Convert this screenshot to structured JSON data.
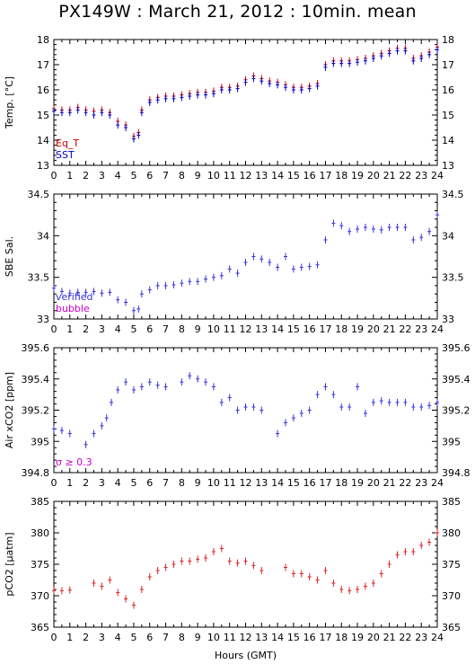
{
  "title": "PX149W : March 21, 2012 : 10min. mean",
  "xlabel": "Hours (GMT)",
  "colors": {
    "eq_t": "#cc0000",
    "sst": "#0000cc",
    "sal": "#3333dd",
    "bubble": "#cc00cc",
    "aircO2": "#3333dd",
    "pco2": "#dd2222"
  },
  "chart_data": [
    {
      "type": "scatter",
      "name": "temperature",
      "ylabel": "Temp. [°C]",
      "xlim": [
        0,
        24
      ],
      "ylim": [
        13,
        18
      ],
      "yticks": [
        13,
        14,
        15,
        16,
        17,
        18
      ],
      "xticks": [
        0,
        1,
        2,
        3,
        4,
        5,
        6,
        7,
        8,
        9,
        10,
        11,
        12,
        13,
        14,
        15,
        16,
        17,
        18,
        19,
        20,
        21,
        22,
        23,
        24
      ],
      "legend": [
        "Eq_T",
        "SST"
      ],
      "legend_position": "bottom-left",
      "series": [
        {
          "name": "Eq_T",
          "color": "#cc0000",
          "points": [
            [
              0,
              15.25
            ],
            [
              0.5,
              15.2
            ],
            [
              1,
              15.2
            ],
            [
              1.5,
              15.3
            ],
            [
              2,
              15.2
            ],
            [
              2.5,
              15.15
            ],
            [
              3,
              15.2
            ],
            [
              3.5,
              15.1
            ],
            [
              4,
              14.75
            ],
            [
              4.5,
              14.6
            ],
            [
              5,
              14.15
            ],
            [
              5.3,
              14.3
            ],
            [
              5.5,
              15.2
            ],
            [
              6,
              15.6
            ],
            [
              6.5,
              15.7
            ],
            [
              7,
              15.75
            ],
            [
              7.5,
              15.75
            ],
            [
              8,
              15.8
            ],
            [
              8.5,
              15.85
            ],
            [
              9,
              15.9
            ],
            [
              9.5,
              15.9
            ],
            [
              10,
              15.95
            ],
            [
              10.5,
              16.1
            ],
            [
              11,
              16.1
            ],
            [
              11.5,
              16.15
            ],
            [
              12,
              16.4
            ],
            [
              12.5,
              16.55
            ],
            [
              13,
              16.45
            ],
            [
              13.5,
              16.35
            ],
            [
              14,
              16.3
            ],
            [
              14.5,
              16.2
            ],
            [
              15,
              16.1
            ],
            [
              15.5,
              16.1
            ],
            [
              16,
              16.15
            ],
            [
              16.5,
              16.25
            ],
            [
              17,
              17.0
            ],
            [
              17.5,
              17.15
            ],
            [
              18,
              17.15
            ],
            [
              18.5,
              17.15
            ],
            [
              19,
              17.2
            ],
            [
              19.5,
              17.25
            ],
            [
              20,
              17.35
            ],
            [
              20.5,
              17.45
            ],
            [
              21,
              17.55
            ],
            [
              21.5,
              17.65
            ],
            [
              22,
              17.65
            ],
            [
              22.5,
              17.25
            ],
            [
              23,
              17.35
            ],
            [
              23.5,
              17.5
            ],
            [
              24,
              17.7
            ]
          ]
        },
        {
          "name": "SST",
          "color": "#0000cc",
          "points": [
            [
              0,
              15.15
            ],
            [
              0.5,
              15.1
            ],
            [
              1,
              15.1
            ],
            [
              1.5,
              15.2
            ],
            [
              2,
              15.1
            ],
            [
              2.5,
              15.0
            ],
            [
              3,
              15.1
            ],
            [
              3.5,
              15.0
            ],
            [
              4,
              14.6
            ],
            [
              4.5,
              14.5
            ],
            [
              5,
              14.05
            ],
            [
              5.3,
              14.2
            ],
            [
              5.5,
              15.1
            ],
            [
              6,
              15.5
            ],
            [
              6.5,
              15.6
            ],
            [
              7,
              15.65
            ],
            [
              7.5,
              15.65
            ],
            [
              8,
              15.7
            ],
            [
              8.5,
              15.75
            ],
            [
              9,
              15.8
            ],
            [
              9.5,
              15.8
            ],
            [
              10,
              15.85
            ],
            [
              10.5,
              16.0
            ],
            [
              11,
              16.0
            ],
            [
              11.5,
              16.05
            ],
            [
              12,
              16.3
            ],
            [
              12.5,
              16.45
            ],
            [
              13,
              16.35
            ],
            [
              13.5,
              16.25
            ],
            [
              14,
              16.2
            ],
            [
              14.5,
              16.1
            ],
            [
              15,
              16.0
            ],
            [
              15.5,
              16.0
            ],
            [
              16,
              16.05
            ],
            [
              16.5,
              16.15
            ],
            [
              17,
              16.9
            ],
            [
              17.5,
              17.05
            ],
            [
              18,
              17.05
            ],
            [
              18.5,
              17.05
            ],
            [
              19,
              17.1
            ],
            [
              19.5,
              17.15
            ],
            [
              20,
              17.25
            ],
            [
              20.5,
              17.35
            ],
            [
              21,
              17.45
            ],
            [
              21.5,
              17.55
            ],
            [
              22,
              17.55
            ],
            [
              22.5,
              17.15
            ],
            [
              23,
              17.25
            ],
            [
              23.5,
              17.4
            ],
            [
              24,
              17.6
            ]
          ]
        }
      ]
    },
    {
      "type": "scatter",
      "name": "salinity",
      "ylabel": "SBE Sal.",
      "xlim": [
        0,
        24
      ],
      "ylim": [
        33,
        34.5
      ],
      "yticks": [
        33,
        33.5,
        34,
        34.5
      ],
      "xticks": [
        0,
        1,
        2,
        3,
        4,
        5,
        6,
        7,
        8,
        9,
        10,
        11,
        12,
        13,
        14,
        15,
        16,
        17,
        18,
        19,
        20,
        21,
        22,
        23,
        24
      ],
      "legend": [
        "verified",
        "bubble"
      ],
      "legend_position": "bottom-left",
      "series": [
        {
          "name": "verified",
          "color": "#3333dd",
          "points": [
            [
              0,
              33.37
            ],
            [
              0.5,
              33.33
            ],
            [
              1,
              33.31
            ],
            [
              1.5,
              33.32
            ],
            [
              2,
              33.32
            ],
            [
              2.5,
              33.33
            ],
            [
              3,
              33.31
            ],
            [
              3.5,
              33.32
            ],
            [
              4,
              33.23
            ],
            [
              4.5,
              33.2
            ],
            [
              5,
              33.1
            ],
            [
              5.3,
              33.12
            ],
            [
              5.5,
              33.3
            ],
            [
              6,
              33.35
            ],
            [
              6.5,
              33.4
            ],
            [
              7,
              33.4
            ],
            [
              7.5,
              33.41
            ],
            [
              8,
              33.43
            ],
            [
              8.5,
              33.45
            ],
            [
              9,
              33.45
            ],
            [
              9.5,
              33.48
            ],
            [
              10,
              33.5
            ],
            [
              10.5,
              33.52
            ],
            [
              11,
              33.6
            ],
            [
              11.5,
              33.55
            ],
            [
              12,
              33.68
            ],
            [
              12.5,
              33.75
            ],
            [
              13,
              33.72
            ],
            [
              13.5,
              33.68
            ],
            [
              14,
              33.62
            ],
            [
              14.5,
              33.75
            ],
            [
              15,
              33.6
            ],
            [
              15.5,
              33.62
            ],
            [
              16,
              33.63
            ],
            [
              16.5,
              33.65
            ],
            [
              17,
              33.95
            ],
            [
              17.5,
              34.15
            ],
            [
              18,
              34.12
            ],
            [
              18.5,
              34.05
            ],
            [
              19,
              34.08
            ],
            [
              19.5,
              34.1
            ],
            [
              20,
              34.08
            ],
            [
              20.5,
              34.07
            ],
            [
              21,
              34.1
            ],
            [
              21.5,
              34.1
            ],
            [
              22,
              34.1
            ],
            [
              22.5,
              33.95
            ],
            [
              23,
              33.98
            ],
            [
              23.5,
              34.05
            ],
            [
              24,
              34.25
            ]
          ]
        }
      ]
    },
    {
      "type": "scatter",
      "name": "air-xco2",
      "ylabel": "Air xCO2 [ppm]",
      "xlim": [
        0,
        24
      ],
      "ylim": [
        394.8,
        395.6
      ],
      "yticks": [
        394.8,
        395,
        395.2,
        395.4,
        395.6
      ],
      "xticks": [
        0,
        1,
        2,
        3,
        4,
        5,
        6,
        7,
        8,
        9,
        10,
        11,
        12,
        13,
        14,
        15,
        16,
        17,
        18,
        19,
        20,
        21,
        22,
        23,
        24
      ],
      "legend": [
        "σ ≥ 0.3"
      ],
      "legend_position": "bottom-left",
      "series": [
        {
          "name": "Air xCO2",
          "color": "#3333dd",
          "points": [
            [
              0,
              395.08
            ],
            [
              0.5,
              395.07
            ],
            [
              1,
              395.05
            ],
            [
              2,
              394.98
            ],
            [
              2.5,
              395.05
            ],
            [
              3,
              395.1
            ],
            [
              3.3,
              395.15
            ],
            [
              3.6,
              395.25
            ],
            [
              4,
              395.33
            ],
            [
              4.5,
              395.38
            ],
            [
              5,
              395.33
            ],
            [
              5.5,
              395.35
            ],
            [
              6,
              395.38
            ],
            [
              6.5,
              395.36
            ],
            [
              7,
              395.35
            ],
            [
              8,
              395.38
            ],
            [
              8.5,
              395.42
            ],
            [
              9,
              395.4
            ],
            [
              9.5,
              395.38
            ],
            [
              10,
              395.35
            ],
            [
              10.5,
              395.25
            ],
            [
              11,
              395.28
            ],
            [
              11.5,
              395.2
            ],
            [
              12,
              395.22
            ],
            [
              12.5,
              395.22
            ],
            [
              13,
              395.2
            ],
            [
              14,
              395.05
            ],
            [
              14.5,
              395.12
            ],
            [
              15,
              395.15
            ],
            [
              15.5,
              395.18
            ],
            [
              16,
              395.2
            ],
            [
              16.5,
              395.3
            ],
            [
              17,
              395.35
            ],
            [
              17.5,
              395.3
            ],
            [
              18,
              395.22
            ],
            [
              18.5,
              395.22
            ],
            [
              19,
              395.35
            ],
            [
              19.5,
              395.18
            ],
            [
              20,
              395.25
            ],
            [
              20.5,
              395.26
            ],
            [
              21,
              395.25
            ],
            [
              21.5,
              395.25
            ],
            [
              22,
              395.25
            ],
            [
              22.5,
              395.22
            ],
            [
              23,
              395.22
            ],
            [
              23.5,
              395.23
            ],
            [
              24,
              395.25
            ]
          ]
        }
      ]
    },
    {
      "type": "scatter",
      "name": "pco2",
      "ylabel": "pCO2 [µatm]",
      "xlim": [
        0,
        24
      ],
      "ylim": [
        365,
        385
      ],
      "yticks": [
        365,
        370,
        375,
        380,
        385
      ],
      "xticks": [
        0,
        1,
        2,
        3,
        4,
        5,
        6,
        7,
        8,
        9,
        10,
        11,
        12,
        13,
        14,
        15,
        16,
        17,
        18,
        19,
        20,
        21,
        22,
        23,
        24
      ],
      "legend": [],
      "series": [
        {
          "name": "pCO2",
          "color": "#dd2222",
          "points": [
            [
              0,
              370.8
            ],
            [
              0.5,
              370.8
            ],
            [
              1,
              370.9
            ],
            [
              2.5,
              372
            ],
            [
              3,
              371.5
            ],
            [
              3.5,
              372.5
            ],
            [
              4,
              370.5
            ],
            [
              4.5,
              369.5
            ],
            [
              5,
              368.5
            ],
            [
              5.5,
              371
            ],
            [
              6,
              373
            ],
            [
              6.5,
              374
            ],
            [
              7,
              374.5
            ],
            [
              7.5,
              375
            ],
            [
              8,
              375.5
            ],
            [
              8.5,
              375.5
            ],
            [
              9,
              375.8
            ],
            [
              9.5,
              376
            ],
            [
              10,
              377
            ],
            [
              10.5,
              377.5
            ],
            [
              11,
              375.5
            ],
            [
              11.5,
              375.2
            ],
            [
              12,
              375.5
            ],
            [
              12.5,
              374.8
            ],
            [
              13,
              374
            ],
            [
              14.5,
              374.5
            ],
            [
              15,
              373.5
            ],
            [
              15.5,
              373.5
            ],
            [
              16,
              373
            ],
            [
              16.5,
              372.5
            ],
            [
              17,
              374
            ],
            [
              17.5,
              372
            ],
            [
              18,
              371
            ],
            [
              18.5,
              370.8
            ],
            [
              19,
              371
            ],
            [
              19.5,
              371.5
            ],
            [
              20,
              372
            ],
            [
              20.5,
              373.5
            ],
            [
              21,
              375
            ],
            [
              21.5,
              376.5
            ],
            [
              22,
              377
            ],
            [
              22.5,
              377
            ],
            [
              23,
              378
            ],
            [
              23.5,
              378.5
            ],
            [
              24,
              380
            ]
          ]
        }
      ]
    }
  ]
}
